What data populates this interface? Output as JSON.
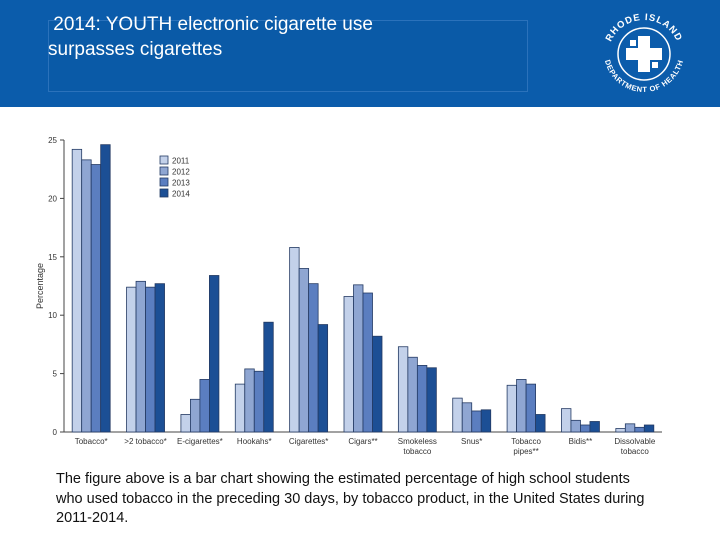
{
  "header": {
    "title_line1": " 2014: YOUTH electronic cigarette use",
    "title_line2": "surpasses cigarettes",
    "logo_text_top": "RHODE ISLAND",
    "logo_text_bottom": "DEPARTMENT OF HEALTH",
    "colors": {
      "banner": "#0b5cab",
      "title": "#ffffff"
    }
  },
  "chart_data": {
    "type": "bar",
    "title": "",
    "xlabel": "",
    "ylabel": "Percentage",
    "ylim": [
      0,
      25
    ],
    "yticks": [
      0,
      5,
      10,
      15,
      20,
      25
    ],
    "grid": false,
    "legend_position": "top-left",
    "categories": [
      "Tobacco*",
      ">2 tobacco*",
      "E-cigarettes*",
      "Hookahs*",
      "Cigarettes*",
      "Cigars**",
      "Smokeless tobacco",
      "Snus*",
      "Tobacco pipes**",
      "Bidis**",
      "Dissolvable tobacco"
    ],
    "series": [
      {
        "name": "2011",
        "color": "#c3d1ea",
        "values": [
          24.2,
          12.4,
          1.5,
          4.1,
          15.8,
          11.6,
          7.3,
          2.9,
          4.0,
          2.0,
          0.3
        ]
      },
      {
        "name": "2012",
        "color": "#8fa6d2",
        "values": [
          23.3,
          12.9,
          2.8,
          5.4,
          14.0,
          12.6,
          6.4,
          2.5,
          4.5,
          1.0,
          0.7
        ]
      },
      {
        "name": "2013",
        "color": "#5b7ec0",
        "values": [
          22.9,
          12.4,
          4.5,
          5.2,
          12.7,
          11.9,
          5.7,
          1.8,
          4.1,
          0.6,
          0.4
        ]
      },
      {
        "name": "2014",
        "color": "#1c4f95",
        "values": [
          24.6,
          12.7,
          13.4,
          9.4,
          9.2,
          8.2,
          5.5,
          1.9,
          1.5,
          0.9,
          0.6
        ]
      }
    ]
  },
  "caption": "The figure above is a bar chart showing the estimated percentage of high school students who used tobacco in the preceding 30 days, by tobacco product, in the United States during 2011-2014."
}
